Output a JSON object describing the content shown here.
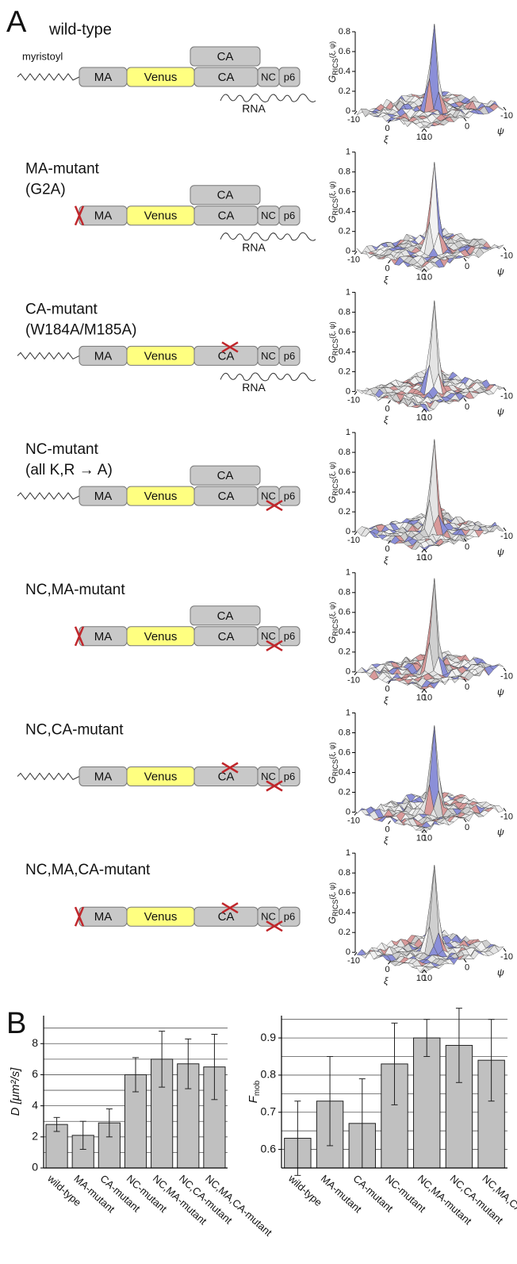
{
  "panel_a": {
    "label": "A",
    "domains": [
      "MA",
      "Venus",
      "CA",
      "NC",
      "p6"
    ],
    "rna_label": "RNA",
    "surface": {
      "zlabel": "G",
      "zlabel_sub": "RICS",
      "zlabel_args": "(ξ, ψ)",
      "xi_label": "ξ",
      "psi_label": "ψ",
      "xi_ticks": [
        -10,
        0,
        10
      ],
      "psi_ticks": [
        -10,
        0,
        10
      ]
    },
    "constructs": [
      {
        "name": [
          "wild-type"
        ],
        "myristoyl_label": "myristoyl",
        "myristoyl": true,
        "ca_dimer": true,
        "rna": true,
        "mutated": [],
        "zticks": [
          0,
          0.2,
          0.4,
          0.6,
          0.8
        ]
      },
      {
        "name": [
          "MA-mutant",
          "(G2A)"
        ],
        "myristoyl": false,
        "ca_dimer": true,
        "rna": true,
        "mutated": [
          "MA"
        ],
        "zticks": [
          0,
          0.2,
          0.4,
          0.6,
          0.8,
          1
        ]
      },
      {
        "name": [
          "CA-mutant",
          "(W184A/M185A)"
        ],
        "myristoyl": true,
        "ca_dimer": false,
        "rna": true,
        "mutated": [
          "CA"
        ],
        "zticks": [
          0,
          0.2,
          0.4,
          0.6,
          0.8,
          1
        ]
      },
      {
        "name": [
          "NC-mutant",
          "(all K,R → A)"
        ],
        "myristoyl": true,
        "ca_dimer": true,
        "rna": false,
        "mutated": [
          "NC"
        ],
        "zticks": [
          0,
          0.2,
          0.4,
          0.6,
          0.8,
          1
        ]
      },
      {
        "name": [
          "NC,MA-mutant"
        ],
        "myristoyl": false,
        "ca_dimer": true,
        "rna": false,
        "mutated": [
          "MA",
          "NC"
        ],
        "zticks": [
          0,
          0.2,
          0.4,
          0.6,
          0.8,
          1
        ]
      },
      {
        "name": [
          "NC,CA-mutant"
        ],
        "myristoyl": true,
        "ca_dimer": false,
        "rna": false,
        "mutated": [
          "CA",
          "NC"
        ],
        "zticks": [
          0,
          0.2,
          0.4,
          0.6,
          0.8,
          1
        ]
      },
      {
        "name": [
          "NC,MA,CA-mutant"
        ],
        "myristoyl": false,
        "ca_dimer": false,
        "rna": false,
        "mutated": [
          "MA",
          "CA",
          "NC"
        ],
        "zticks": [
          0,
          0.2,
          0.4,
          0.6,
          0.8,
          1
        ]
      }
    ]
  },
  "panel_b": {
    "label": "B"
  },
  "chart_data": [
    {
      "type": "bar",
      "ylabel": "D [μm²/s]",
      "categories": [
        "wild-type",
        "MA-mutant",
        "CA-mutant",
        "NC-mutant",
        "NC,MA-mutant",
        "NC,CA-mutant",
        "NC,MA,CA-mutant"
      ],
      "values": [
        2.8,
        2.1,
        2.9,
        6.0,
        7.0,
        6.7,
        6.5
      ],
      "errors": [
        0.45,
        0.9,
        0.9,
        1.1,
        1.8,
        1.6,
        2.1
      ],
      "color": "#c0c0c0",
      "ylim": [
        0,
        9.8
      ],
      "yticks": [
        0,
        2,
        4,
        6,
        8
      ],
      "minor_yticks": [
        1,
        3,
        5,
        7,
        9
      ],
      "grid": true
    },
    {
      "type": "bar",
      "ylabel": "F",
      "ylabel_sub": "mob",
      "categories": [
        "wild-type",
        "MA-mutant",
        "CA-mutant",
        "NC-mutant",
        "NC,MA-mutant",
        "NC,CA-mutant",
        "NC,MA,CA-mutant"
      ],
      "values": [
        0.63,
        0.73,
        0.67,
        0.83,
        0.9,
        0.88,
        0.84
      ],
      "errors": [
        0.1,
        0.12,
        0.12,
        0.11,
        0.05,
        0.1,
        0.11
      ],
      "color": "#c0c0c0",
      "ylim": [
        0.55,
        0.96
      ],
      "yticks": [
        0.6,
        0.7,
        0.8,
        0.9
      ],
      "minor_yticks": [
        0.65,
        0.75,
        0.85,
        0.95
      ],
      "grid": true
    }
  ]
}
